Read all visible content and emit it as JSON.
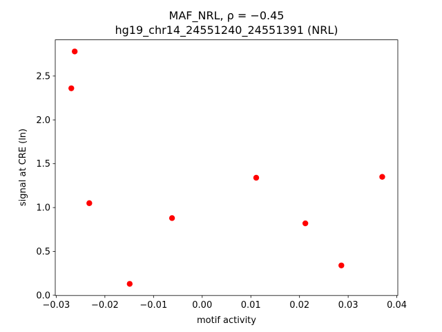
{
  "chart_data": {
    "type": "scatter",
    "title": "MAF_NRL, ρ = −0.45",
    "subtitle": "hg19_chr14_24551240_24551391 (NRL)",
    "x_label": "motif activity",
    "y_label": "signal at CRE (ln)",
    "color": "#ff0000",
    "x": [
      -0.0269,
      -0.0262,
      -0.0232,
      -0.0149,
      -0.0062,
      0.0111,
      0.0212,
      0.0286,
      0.037
    ],
    "values": [
      2.36,
      2.78,
      1.05,
      0.13,
      0.88,
      1.34,
      0.82,
      0.34,
      1.35
    ],
    "xlim": [
      -0.0302,
      0.0402
    ],
    "ylim": [
      -0.0025,
      2.9125
    ],
    "xticks": [
      {
        "value": -0.03,
        "label": "−0.03"
      },
      {
        "value": -0.02,
        "label": "−0.02"
      },
      {
        "value": -0.01,
        "label": "−0.01"
      },
      {
        "value": 0,
        "label": "0.00"
      },
      0.01,
      0.02,
      0.03,
      0.04
    ],
    "yticks": [
      {
        "value": 0,
        "label": "0.0"
      },
      0.5,
      {
        "value": 1,
        "label": "1.0"
      },
      1.5,
      {
        "value": 2,
        "label": "2.0"
      },
      2.5
    ],
    "grid": false
  }
}
